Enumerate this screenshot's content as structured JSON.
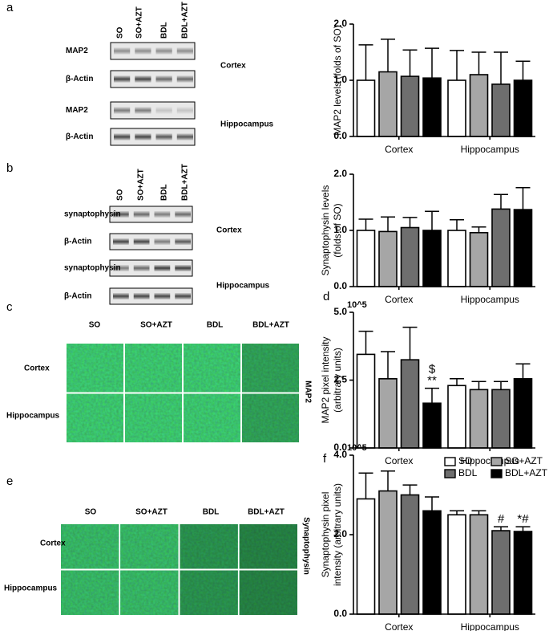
{
  "panel_letters": [
    "a",
    "b",
    "c",
    "d",
    "e",
    "f"
  ],
  "blots": [
    {
      "lanes": [
        "SO",
        "SO+AZT",
        "BDL",
        "BDL+AZT"
      ],
      "rows": [
        "MAP2",
        "β-Actin",
        "MAP2",
        "β-Actin"
      ],
      "regions": [
        "Cortex",
        "Hippocampus"
      ]
    },
    {
      "lanes": [
        "SO",
        "SO+AZT",
        "BDL",
        "BDL+AZT"
      ],
      "rows": [
        "synaptophysin",
        "β-Actin",
        "synaptophysin",
        "β-Actin"
      ],
      "regions": [
        "Cortex",
        "Hippocampus"
      ]
    }
  ],
  "micrographs": [
    {
      "columns": [
        "SO",
        "SO+AZT",
        "BDL",
        "BDL+AZT"
      ],
      "rows": [
        "Cortex",
        "Hippocampus"
      ],
      "side_label": "MAP2"
    },
    {
      "columns": [
        "SO",
        "SO+AZT",
        "BDL",
        "BDL+AZT"
      ],
      "rows": [
        "Cortex",
        "Hippocampus"
      ],
      "side_label": "Synaptophysin"
    }
  ],
  "chart_data": [
    {
      "type": "bar",
      "ylabel": [
        "MAP2  levels (folds of SO)"
      ],
      "categories": [
        "Cortex",
        "Hippocampus"
      ],
      "ylim": [
        0,
        2
      ],
      "yticks": [
        {
          "value": 0,
          "label": "0.0"
        },
        {
          "value": 1,
          "label": "1.0"
        },
        {
          "value": 2,
          "label": "2.0"
        }
      ],
      "series": [
        {
          "name": "SO",
          "color": "#ffffff",
          "values": [
            1.0,
            1.0
          ],
          "errors": [
            0.63,
            0.53
          ]
        },
        {
          "name": "SO+AZT",
          "color": "#a6a6a6",
          "values": [
            1.15,
            1.1
          ],
          "errors": [
            0.58,
            0.4
          ]
        },
        {
          "name": "BDL",
          "color": "#6e6e6e",
          "values": [
            1.07,
            0.93
          ],
          "errors": [
            0.47,
            0.57
          ]
        },
        {
          "name": "BDL+AZT",
          "color": "#000000",
          "values": [
            1.04,
            1.0
          ],
          "errors": [
            0.53,
            0.34
          ]
        }
      ]
    },
    {
      "type": "bar",
      "ylabel": [
        "Synaptophysin levels",
        "(folds of SO)"
      ],
      "categories": [
        "Cortex",
        "Hippocampus"
      ],
      "ylim": [
        0,
        2
      ],
      "yticks": [
        {
          "value": 0,
          "label": "0.0"
        },
        {
          "value": 1,
          "label": "1.0"
        },
        {
          "value": 2,
          "label": "2.0"
        }
      ],
      "series": [
        {
          "name": "SO",
          "color": "#ffffff",
          "values": [
            1.0,
            1.0
          ],
          "errors": [
            0.2,
            0.19
          ]
        },
        {
          "name": "SO+AZT",
          "color": "#a6a6a6",
          "values": [
            0.98,
            0.96
          ],
          "errors": [
            0.26,
            0.1
          ]
        },
        {
          "name": "BDL",
          "color": "#6e6e6e",
          "values": [
            1.05,
            1.38
          ],
          "errors": [
            0.18,
            0.26
          ]
        },
        {
          "name": "BDL+AZT",
          "color": "#000000",
          "values": [
            1.0,
            1.37
          ],
          "errors": [
            0.34,
            0.39
          ]
        }
      ]
    },
    {
      "type": "bar",
      "ylabel": [
        "MAP2 pixel intensity",
        "(arbitrary units)"
      ],
      "scale_label": "10^5",
      "categories": [
        "Cortex",
        "Hippocampus"
      ],
      "ylim": [
        0,
        5
      ],
      "yticks": [
        {
          "value": 0,
          "label": "0.0"
        },
        2.5,
        {
          "value": 5,
          "label": "5.0"
        }
      ],
      "series": [
        {
          "name": "SO",
          "color": "#ffffff",
          "values": [
            3.45,
            2.3
          ],
          "errors": [
            0.85,
            0.25
          ]
        },
        {
          "name": "SO+AZT",
          "color": "#a6a6a6",
          "values": [
            2.55,
            2.15
          ],
          "errors": [
            1.0,
            0.3
          ]
        },
        {
          "name": "BDL",
          "color": "#6e6e6e",
          "values": [
            3.25,
            2.15
          ],
          "errors": [
            1.2,
            0.3
          ]
        },
        {
          "name": "BDL+AZT",
          "color": "#000000",
          "values": [
            1.65,
            2.55
          ],
          "errors": [
            0.55,
            0.55
          ],
          "annotations": [
            [
              "$",
              "**"
            ],
            null
          ]
        }
      ]
    },
    {
      "type": "bar",
      "ylabel": [
        "Synaptophysin pixel",
        "intensity (arbitrary units)"
      ],
      "scale_label": "10^5",
      "legend": "upper right",
      "categories": [
        "Cortex",
        "Hippocampus"
      ],
      "ylim": [
        0,
        4
      ],
      "yticks": [
        {
          "value": 0,
          "label": "0.0"
        },
        {
          "value": 2,
          "label": "2.0"
        },
        {
          "value": 4,
          "label": "4.0"
        }
      ],
      "series": [
        {
          "name": "SO",
          "color": "#ffffff",
          "values": [
            2.9,
            2.5
          ],
          "errors": [
            0.65,
            0.1
          ]
        },
        {
          "name": "SO+AZT",
          "color": "#a6a6a6",
          "values": [
            3.1,
            2.5
          ],
          "errors": [
            0.5,
            0.1
          ]
        },
        {
          "name": "BDL",
          "color": "#6e6e6e",
          "values": [
            3.0,
            2.1
          ],
          "errors": [
            0.25,
            0.1
          ],
          "annotations": [
            null,
            [
              "#"
            ]
          ]
        },
        {
          "name": "BDL+AZT",
          "color": "#000000",
          "values": [
            2.6,
            2.08
          ],
          "errors": [
            0.35,
            0.12
          ],
          "annotations": [
            null,
            [
              "*#"
            ]
          ]
        }
      ]
    }
  ]
}
